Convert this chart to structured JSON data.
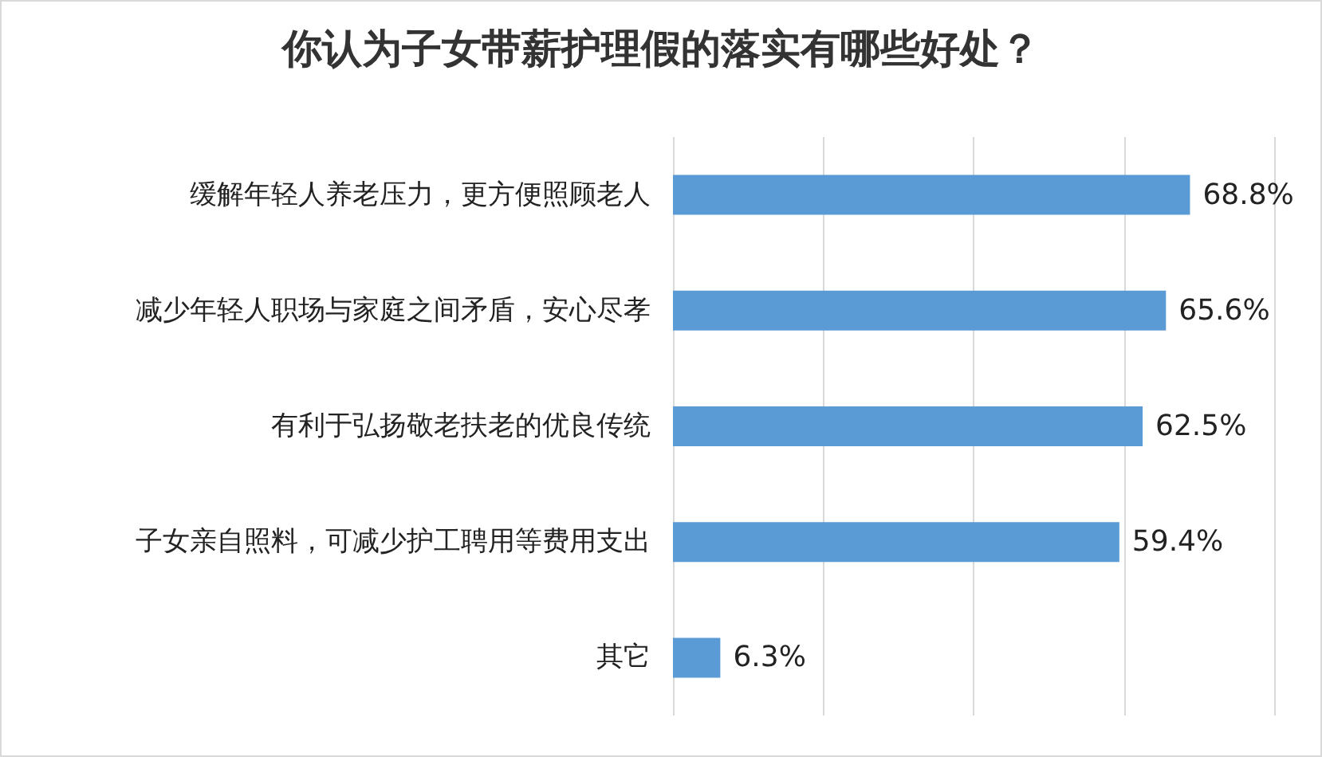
{
  "chart_data": {
    "type": "bar",
    "orientation": "horizontal",
    "title": "你认为子女带薪护理假的落实有哪些好处？",
    "categories": [
      "缓解年轻人养老压力，更方便照顾老人",
      "减少年轻人职场与家庭之间矛盾，安心尽孝",
      "有利于弘扬敬老扶老的优良传统",
      "子女亲自照料，可减少护工聘用等费用支出",
      "其它"
    ],
    "values": [
      68.8,
      65.6,
      62.5,
      59.4,
      6.3
    ],
    "value_labels": [
      "68.8%",
      "65.6%",
      "62.5%",
      "59.4%",
      "6.3%"
    ],
    "color": "#5b9bd5",
    "xlim": [
      0,
      80
    ],
    "xticks": [
      {
        "value": 0,
        "label": null
      },
      {
        "value": 20,
        "label": null
      },
      {
        "value": 40,
        "label": null
      },
      {
        "value": 60,
        "label": null
      },
      {
        "value": 80,
        "label": null
      }
    ],
    "tick_labels": "y",
    "grid": "x"
  }
}
